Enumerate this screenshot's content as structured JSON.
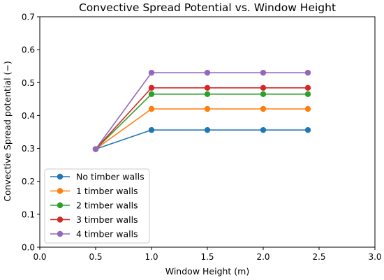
{
  "chart_data": {
    "type": "line",
    "title": "Convective Spread Potential vs. Window Height",
    "xlabel": "Window Height (m)",
    "ylabel": "Convective Spread potential (−)",
    "xlim": [
      0.0,
      3.0
    ],
    "ylim": [
      0.0,
      0.7
    ],
    "xticks": [
      "0.0",
      "0.5",
      "1.0",
      "1.5",
      "2.0",
      "2.5",
      "3.0"
    ],
    "yticks": [
      "0.0",
      "0.1",
      "0.2",
      "0.3",
      "0.4",
      "0.5",
      "0.6",
      "0.7"
    ],
    "x": [
      0.5,
      1.0,
      1.5,
      2.0,
      2.4
    ],
    "grid": false,
    "legend_position": "lower-left",
    "series": [
      {
        "name": "No timber walls",
        "color": "#1f77b4",
        "values": [
          0.298,
          0.356,
          0.356,
          0.356,
          0.356
        ]
      },
      {
        "name": "1 timber walls",
        "color": "#ff7f0e",
        "values": [
          0.298,
          0.42,
          0.42,
          0.42,
          0.42
        ]
      },
      {
        "name": "2 timber walls",
        "color": "#2ca02c",
        "values": [
          0.298,
          0.465,
          0.465,
          0.465,
          0.465
        ]
      },
      {
        "name": "3 timber walls",
        "color": "#d62728",
        "values": [
          0.298,
          0.484,
          0.484,
          0.484,
          0.484
        ]
      },
      {
        "name": "4 timber walls",
        "color": "#9467bd",
        "values": [
          0.298,
          0.53,
          0.53,
          0.53,
          0.53
        ]
      }
    ]
  }
}
